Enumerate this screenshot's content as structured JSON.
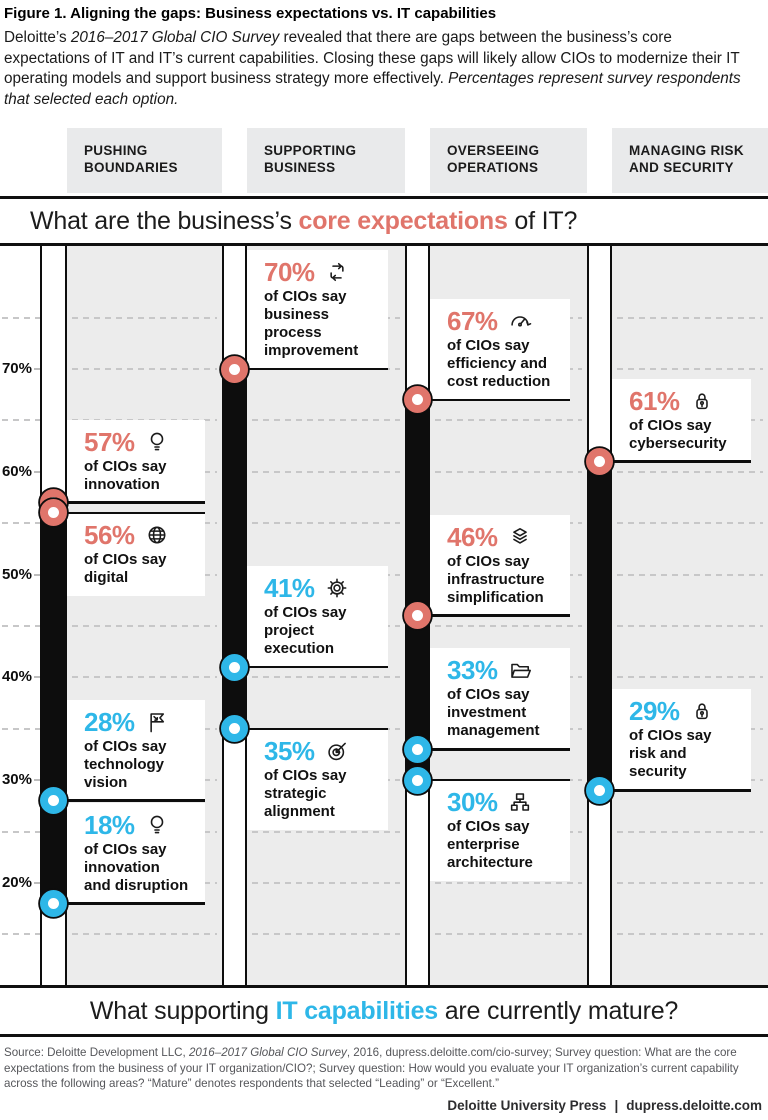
{
  "colors": {
    "expectation": "#e0756b",
    "capability": "#2eb7e8",
    "bar": "#0d0d0d",
    "panel_bg": "#ececec",
    "header_box_bg": "#e9eaeb"
  },
  "figure": {
    "title": "Figure 1. Aligning the gaps: Business expectations vs. IT capabilities",
    "intro_segments": [
      {
        "text": "Deloitte’s ",
        "italic": false
      },
      {
        "text": "2016–2017 Global CIO Survey",
        "italic": true
      },
      {
        "text": " revealed that there are gaps between the business’s core expectations of IT and IT’s current capabilities. Closing these gaps will likely allow CIOs to modernize their IT operating models and support business strategy more effectively. ",
        "italic": false
      },
      {
        "text": "Percentages represent survey respondents that selected each option.",
        "italic": true
      }
    ]
  },
  "questions": {
    "top": {
      "prefix": "What are the business’s ",
      "highlight": "core expectations",
      "suffix": " of IT?",
      "highlight_color": "#e0756b"
    },
    "bottom": {
      "prefix": "What supporting ",
      "highlight": "IT capabilities",
      "suffix": " are currently mature?",
      "highlight_color": "#2eb7e8"
    }
  },
  "chart_data": {
    "type": "dumbbell",
    "unit": "%",
    "series_legend": {
      "expectation": "business core expectation of IT (top question, salmon dots)",
      "capability": "supporting IT capability currently mature (bottom question, cyan dots)"
    },
    "y_axis": {
      "ticks": [
        70,
        60,
        50,
        40,
        30,
        20
      ],
      "minor_gridlines": [
        75,
        65,
        55,
        45,
        35,
        25,
        15
      ],
      "tick_suffix": "%"
    },
    "columns": [
      {
        "header": "PUSHING BOUNDARIES",
        "points": [
          {
            "value": 57,
            "series": "expectation",
            "icon": "lightbulb",
            "label_lines": [
              "of CIOs say",
              "innovation"
            ],
            "label_position": "above"
          },
          {
            "value": 56,
            "series": "expectation",
            "icon": "globe",
            "label_lines": [
              "of CIOs say",
              "digital"
            ],
            "label_position": "below"
          },
          {
            "value": 28,
            "series": "capability",
            "icon": "flag",
            "label_lines": [
              "of CIOs say",
              "technology",
              "vision"
            ],
            "label_position": "above"
          },
          {
            "value": 18,
            "series": "capability",
            "icon": "lightbulb",
            "label_lines": [
              "of CIOs say",
              "innovation",
              "and disruption"
            ],
            "label_position": "above"
          }
        ]
      },
      {
        "header": "SUPPORTING BUSINESS",
        "points": [
          {
            "value": 70,
            "series": "expectation",
            "icon": "cycle-arrows",
            "label_lines": [
              "of CIOs say",
              "business process",
              "improvement"
            ],
            "label_position": "above"
          },
          {
            "value": 41,
            "series": "capability",
            "icon": "gear",
            "label_lines": [
              "of CIOs say",
              "project",
              "execution"
            ],
            "label_position": "above"
          },
          {
            "value": 35,
            "series": "capability",
            "icon": "target-arrow",
            "label_lines": [
              "of CIOs say",
              "strategic",
              "alignment"
            ],
            "label_position": "below"
          }
        ]
      },
      {
        "header": "OVERSEEING OPERATIONS",
        "points": [
          {
            "value": 67,
            "series": "expectation",
            "icon": "gauge",
            "label_lines": [
              "of CIOs say",
              "efficiency and",
              "cost reduction"
            ],
            "label_position": "above"
          },
          {
            "value": 46,
            "series": "expectation",
            "icon": "layers",
            "label_lines": [
              "of CIOs say",
              "infrastructure",
              "simplification"
            ],
            "label_position": "above"
          },
          {
            "value": 33,
            "series": "capability",
            "icon": "folder",
            "label_lines": [
              "of CIOs say",
              "investment",
              "management"
            ],
            "label_position": "above"
          },
          {
            "value": 30,
            "series": "capability",
            "icon": "org-chart",
            "label_lines": [
              "of CIOs say",
              "enterprise",
              "architecture"
            ],
            "label_position": "below"
          }
        ]
      },
      {
        "header": "MANAGING RISK AND SECURITY",
        "points": [
          {
            "value": 61,
            "series": "expectation",
            "icon": "padlock",
            "label_lines": [
              "of CIOs say",
              "cybersecurity"
            ],
            "label_position": "above"
          },
          {
            "value": 29,
            "series": "capability",
            "icon": "padlock",
            "label_lines": [
              "of CIOs say",
              "risk and",
              "security"
            ],
            "label_position": "above"
          }
        ]
      }
    ]
  },
  "source": {
    "segments": [
      {
        "text": "Source: Deloitte Development LLC, ",
        "italic": false
      },
      {
        "text": "2016–2017 Global CIO Survey",
        "italic": true
      },
      {
        "text": ", 2016, dupress.deloitte.com/cio-survey; Survey question: What are the core expectations from the business of your IT organization/CIO?; Survey question: How would you evaluate your IT organization’s current capability across the following areas? “Mature” denotes respondents that selected “Leading” or “Excellent.”",
        "italic": false
      }
    ]
  },
  "footer": {
    "brand": "Deloitte University Press",
    "separator": "|",
    "site": "dupress.deloitte.com"
  }
}
